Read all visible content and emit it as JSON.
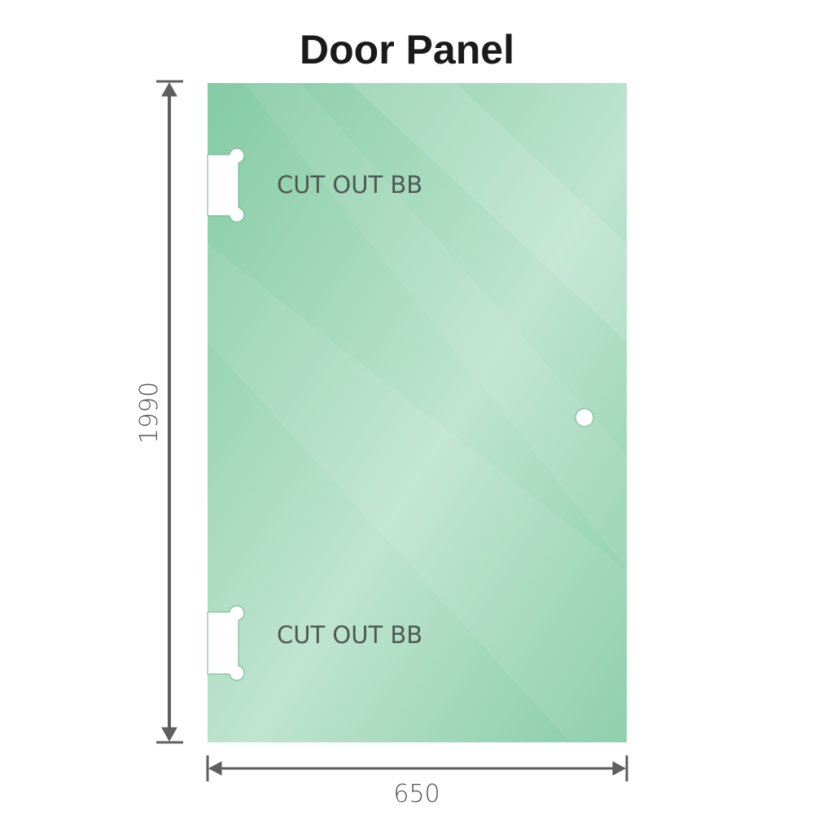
{
  "title": "Door Panel",
  "cutout_top_label": "CUT OUT BB",
  "cutout_bottom_label": "CUT OUT BB",
  "height_dimension": "1990",
  "width_dimension": "650",
  "colors": {
    "glass": "#86cca6",
    "glass_light": "#c0e5d2",
    "dimension_line": "#5f5f5f"
  }
}
